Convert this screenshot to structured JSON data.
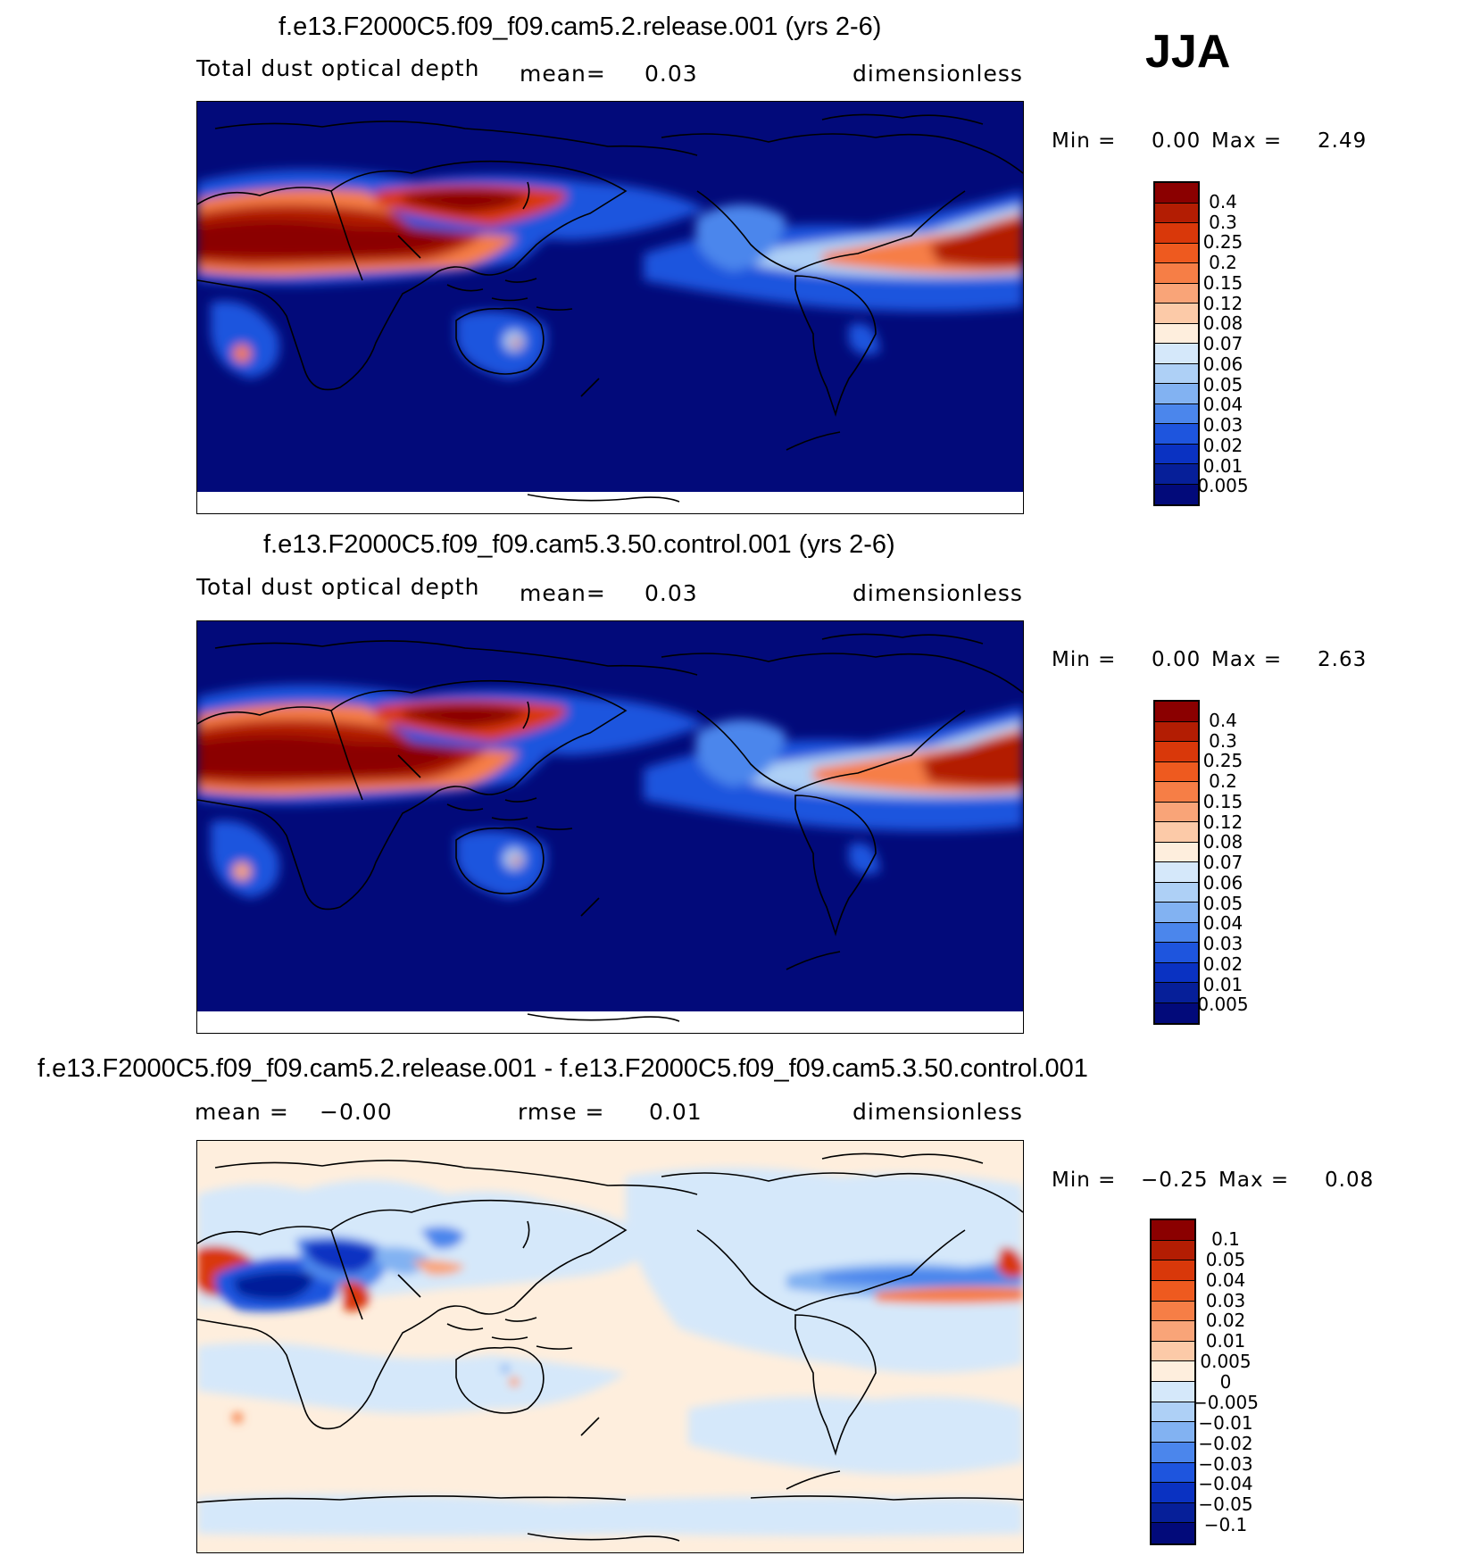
{
  "season": "JJA",
  "panels": [
    {
      "title": "f.e13.F2000C5.f09_f09.cam5.2.release.001 (yrs 2-6)",
      "variable": "Total dust optical depth",
      "stat1_label": "mean=",
      "stat1_value": "0.03",
      "units": "dimensionless",
      "min_label": "Min =",
      "min_value": "0.00",
      "max_label": "Max =",
      "max_value": "2.49"
    },
    {
      "title": "f.e13.F2000C5.f09_f09.cam5.3.50.control.001 (yrs 2-6)",
      "variable": "Total dust optical depth",
      "stat1_label": "mean=",
      "stat1_value": "0.03",
      "units": "dimensionless",
      "min_label": "Min =",
      "min_value": "0.00",
      "max_label": "Max =",
      "max_value": "2.63"
    },
    {
      "title": "f.e13.F2000C5.f09_f09.cam5.2.release.001 - f.e13.F2000C5.f09_f09.cam5.3.50.control.001",
      "stat1_label": "mean =",
      "stat1_value": "−0.00",
      "stat2_label": "rmse =",
      "stat2_value": "0.01",
      "units": "dimensionless",
      "min_label": "Min =",
      "min_value": "−0.25",
      "max_label": "Max =",
      "max_value": "0.08"
    }
  ],
  "colorbars": {
    "field": {
      "labels": [
        "0.4",
        "0.3",
        "0.25",
        "0.2",
        "0.15",
        "0.12",
        "0.08",
        "0.07",
        "0.06",
        "0.05",
        "0.04",
        "0.03",
        "0.02",
        "0.01",
        "0.005"
      ],
      "colors": [
        "#8b0000",
        "#b31d03",
        "#d9380a",
        "#ee5a1f",
        "#f67e46",
        "#f9a478",
        "#fccaa8",
        "#feeedd",
        "#d5e8fa",
        "#aed0f6",
        "#82b2f2",
        "#4b86ec",
        "#1e55de",
        "#0a32c2",
        "#061f99",
        "#020a7a"
      ]
    },
    "diff": {
      "labels": [
        "0.1",
        "0.05",
        "0.04",
        "0.03",
        "0.02",
        "0.01",
        "0.005",
        "0",
        "−0.005",
        "−0.01",
        "−0.02",
        "−0.03",
        "−0.04",
        "−0.05",
        "−0.1"
      ],
      "colors": [
        "#8b0000",
        "#b31d03",
        "#d9380a",
        "#ee5a1f",
        "#f67e46",
        "#f9a478",
        "#fccaa8",
        "#feeedd",
        "#d5e8fa",
        "#aed0f6",
        "#82b2f2",
        "#4b86ec",
        "#1e55de",
        "#0a32c2",
        "#061f99",
        "#020a7a"
      ]
    }
  }
}
